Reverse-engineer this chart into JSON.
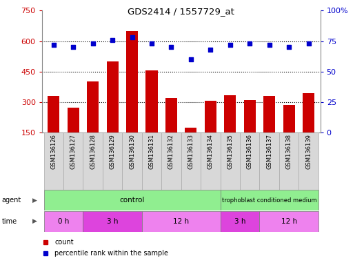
{
  "title": "GDS2414 / 1557729_at",
  "samples": [
    "GSM136126",
    "GSM136127",
    "GSM136128",
    "GSM136129",
    "GSM136130",
    "GSM136131",
    "GSM136132",
    "GSM136133",
    "GSM136134",
    "GSM136135",
    "GSM136136",
    "GSM136137",
    "GSM136138",
    "GSM136139"
  ],
  "counts": [
    330,
    272,
    400,
    500,
    650,
    455,
    320,
    175,
    305,
    335,
    310,
    330,
    285,
    345
  ],
  "percentile": [
    72,
    70,
    73,
    76,
    78,
    73,
    70,
    60,
    68,
    72,
    73,
    72,
    70,
    73
  ],
  "left_ylim": [
    150,
    750
  ],
  "left_yticks": [
    150,
    300,
    450,
    600,
    750
  ],
  "right_ylim": [
    0,
    100
  ],
  "right_yticks": [
    0,
    25,
    50,
    75,
    100
  ],
  "bar_color": "#cc0000",
  "dot_color": "#0000cc",
  "grid_dotted_at": [
    300,
    450,
    600
  ],
  "tick_label_color_left": "#cc0000",
  "tick_label_color_right": "#0000cc",
  "legend_count_label": "count",
  "legend_pct_label": "percentile rank within the sample",
  "agent_label": "agent",
  "time_label": "time",
  "control_label": "control",
  "trophoblast_label": "trophoblast conditioned medium",
  "control_color": "#90ee90",
  "time_color_0h": "#ee82ee",
  "time_color_3h": "#dd44dd",
  "time_color_12h": "#ee82ee",
  "label_bg": "#d8d8d8",
  "label_edge": "#aaaaaa"
}
